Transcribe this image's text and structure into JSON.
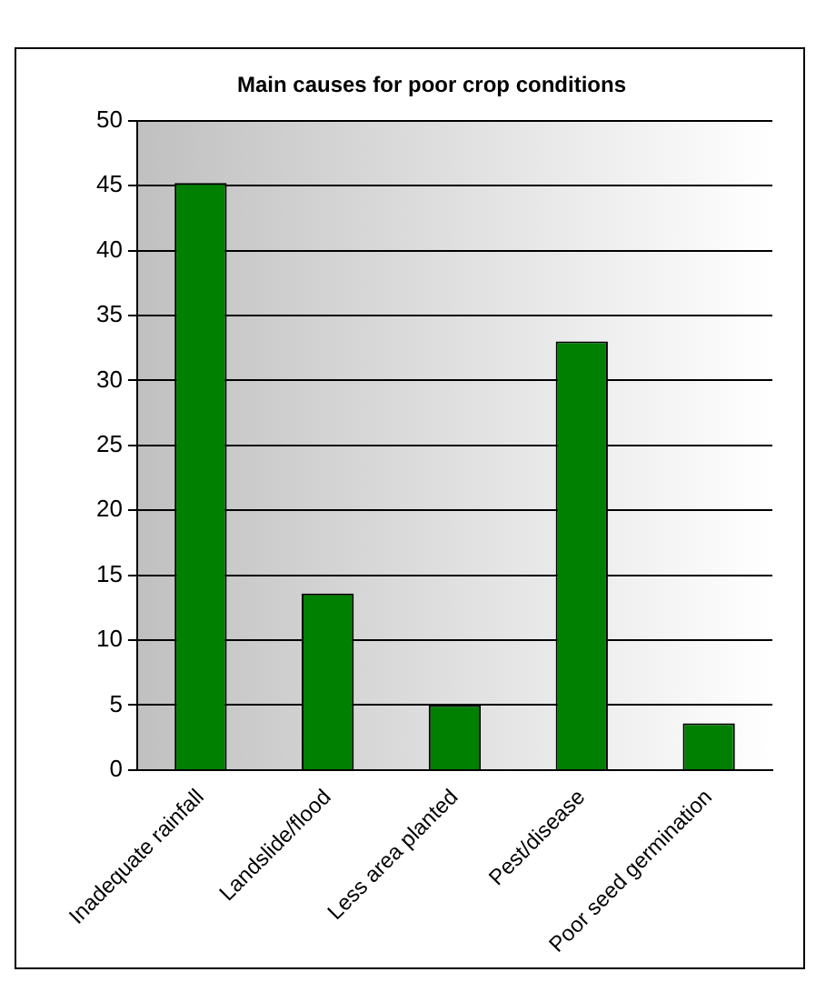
{
  "chart_data": {
    "type": "bar",
    "title": "Main causes for poor crop conditions",
    "categories": [
      "Inadequate rainfall",
      "Landslide/flood",
      "Less area planted",
      "Pest/disease",
      "Poor seed germination"
    ],
    "values": [
      45.2,
      13.6,
      5.0,
      33.0,
      3.6
    ],
    "color": "#008000",
    "ylim": [
      0,
      50
    ],
    "yticks": [
      0,
      5,
      10,
      15,
      20,
      25,
      30,
      35,
      40,
      45,
      50
    ],
    "grid": "y"
  }
}
